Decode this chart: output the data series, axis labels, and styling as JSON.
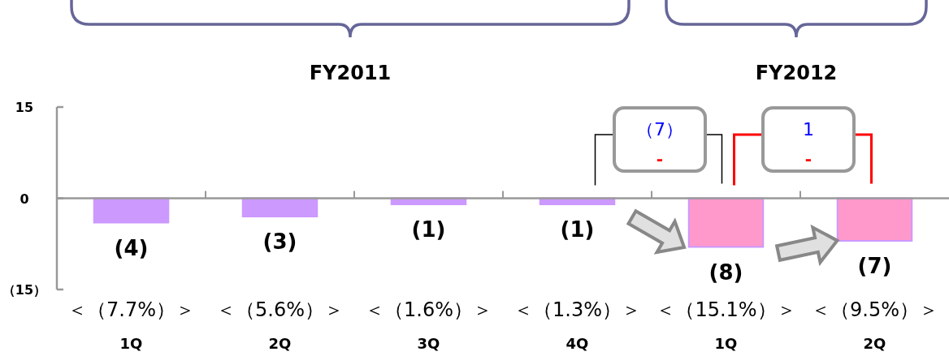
{
  "chart_data": {
    "type": "bar",
    "categories": [
      "1Q",
      "2Q",
      "3Q",
      "4Q",
      "1Q",
      "2Q"
    ],
    "values": [
      -4,
      -3,
      -1,
      -1,
      -8,
      -7
    ],
    "value_labels": [
      "(4)",
      "(3)",
      "(1)",
      "(1)",
      "(8)",
      "(7)"
    ],
    "colors": [
      "#cc99ff",
      "#cc99ff",
      "#cc99ff",
      "#cc99ff",
      "#ff99cc",
      "#ff99cc"
    ],
    "ylim": [
      -15,
      15
    ],
    "yticks": [
      15,
      0,
      {
        "value": -15,
        "label": "（15）"
      }
    ],
    "annotations": [
      "FY2011",
      "FY2012",
      "＜（7.7%）＞",
      "＜（5.6%）＞",
      "＜（1.6%）＞",
      "＜（1.3%）＞",
      "＜（15.1%）＞",
      "＜（9.5%）＞",
      "（7）",
      "-",
      "1",
      "-"
    ]
  }
}
